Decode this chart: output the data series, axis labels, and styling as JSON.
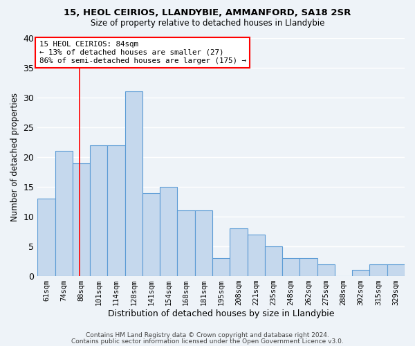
{
  "title1": "15, HEOL CEIRIOS, LLANDYBIE, AMMANFORD, SA18 2SR",
  "title2": "Size of property relative to detached houses in Llandybie",
  "xlabel": "Distribution of detached houses by size in Llandybie",
  "ylabel": "Number of detached properties",
  "categories": [
    "61sqm",
    "74sqm",
    "88sqm",
    "101sqm",
    "114sqm",
    "128sqm",
    "141sqm",
    "154sqm",
    "168sqm",
    "181sqm",
    "195sqm",
    "208sqm",
    "221sqm",
    "235sqm",
    "248sqm",
    "262sqm",
    "275sqm",
    "288sqm",
    "302sqm",
    "315sqm",
    "329sqm"
  ],
  "values": [
    13,
    21,
    19,
    22,
    22,
    31,
    14,
    15,
    11,
    11,
    3,
    8,
    7,
    5,
    3,
    3,
    2,
    0,
    1,
    2,
    2
  ],
  "bar_color": "#c5d8ed",
  "bar_edge_color": "#5b9bd5",
  "annotation_box_text": "15 HEOL CEIRIOS: 84sqm\n← 13% of detached houses are smaller (27)\n86% of semi-detached houses are larger (175) →",
  "annotation_box_color": "white",
  "annotation_box_edge_color": "red",
  "ref_line_x": 1.9,
  "ref_line_color": "red",
  "ylim": [
    0,
    40
  ],
  "yticks": [
    0,
    5,
    10,
    15,
    20,
    25,
    30,
    35,
    40
  ],
  "footer_line1": "Contains HM Land Registry data © Crown copyright and database right 2024.",
  "footer_line2": "Contains public sector information licensed under the Open Government Licence v3.0.",
  "bg_color": "#eef3f8",
  "grid_color": "white"
}
